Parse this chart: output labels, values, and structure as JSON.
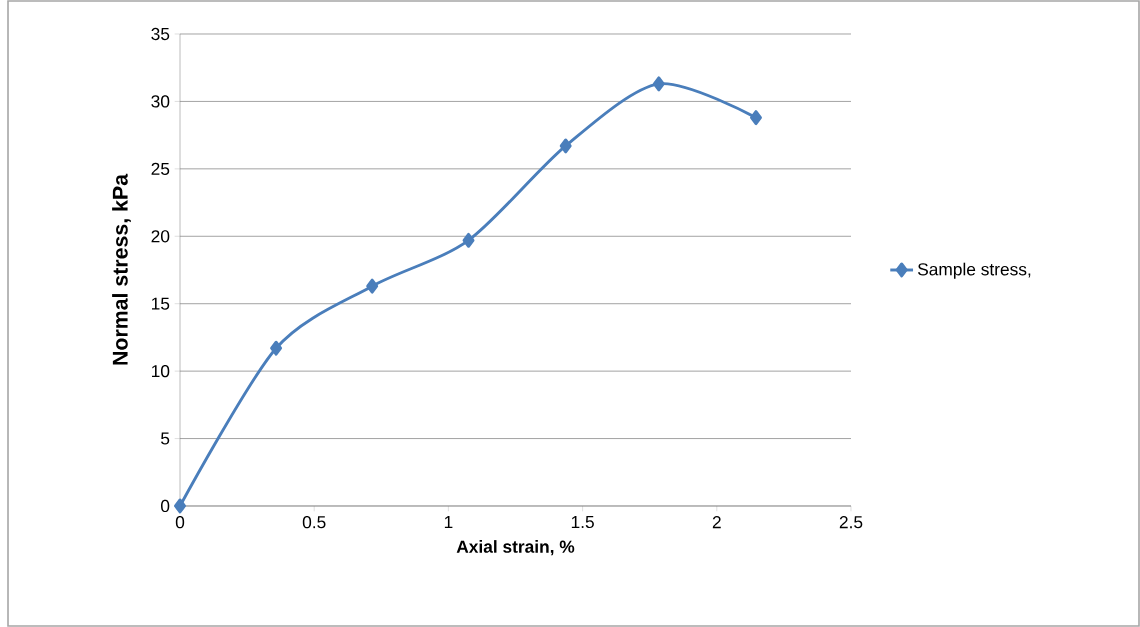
{
  "chart_data": {
    "type": "line",
    "xlabel": "Axial strain, %",
    "ylabel": "Normal stress, kPa",
    "x": [
      0,
      0.358,
      0.716,
      1.075,
      1.437,
      1.784,
      2.146
    ],
    "series": [
      {
        "name": "Sample stress,",
        "color": "#4a7ebb",
        "values": [
          0,
          11.7,
          16.3,
          19.7,
          26.7,
          31.3,
          28.8
        ]
      }
    ],
    "xlim": [
      0,
      2.5
    ],
    "xticks": [
      0,
      0.5,
      1,
      1.5,
      2,
      2.5
    ],
    "ylim": [
      0,
      35
    ],
    "yticks": [
      0,
      5,
      10,
      15,
      20,
      25,
      30,
      35
    ],
    "grid": "y",
    "legend": "right",
    "marker": "diamond",
    "line_style": "solid"
  }
}
